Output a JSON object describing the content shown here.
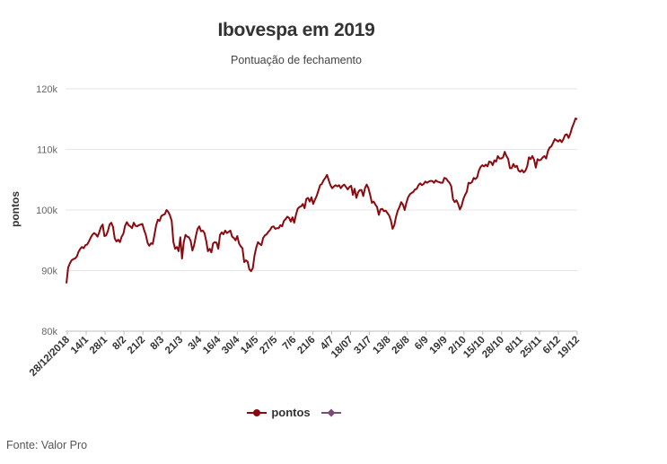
{
  "chart_data": {
    "type": "line",
    "title": "Ibovespa em 2019",
    "subtitle": "Pontuação de fechamento",
    "ylabel": "pontos",
    "xlabel": "",
    "ylim": [
      80000,
      120000
    ],
    "y_ticks": [
      80000,
      90000,
      100000,
      110000,
      120000
    ],
    "y_tick_labels": [
      "80k",
      "90k",
      "100k",
      "110k",
      "120k"
    ],
    "x_tick_labels": [
      "28/12/2018",
      "14/1",
      "28/1",
      "8/2",
      "21/2",
      "8/3",
      "21/3",
      "3/4",
      "16/4",
      "30/4",
      "14/5",
      "27/5",
      "7/6",
      "21/6",
      "4/7",
      "18/07",
      "31/7",
      "13/8",
      "26/8",
      "6/9",
      "19/9",
      "2/10",
      "15/10",
      "28/10",
      "8/11",
      "25/11",
      "6/12",
      "19/12"
    ],
    "grid": true,
    "legend_position": "bottom",
    "series": [
      {
        "name": "pontos",
        "color": "#8b0a0f",
        "values": [
          87900,
          90500,
          91200,
          91700,
          91900,
          92000,
          92300,
          93100,
          93600,
          93900,
          93700,
          94200,
          94300,
          94800,
          95400,
          95900,
          96200,
          96000,
          95600,
          96300,
          97200,
          97600,
          95700,
          95800,
          96500,
          97600,
          97900,
          97200,
          95300,
          94800,
          95100,
          94700,
          95600,
          96100,
          97400,
          98000,
          97500,
          97300,
          97000,
          97900,
          97400,
          97300,
          97500,
          97600,
          97700,
          96700,
          95900,
          94600,
          94100,
          94500,
          94400,
          95900,
          97500,
          98400,
          98200,
          99000,
          99200,
          99300,
          100000,
          99700,
          99100,
          98200,
          94700,
          93600,
          93900,
          93200,
          95500,
          92000,
          94700,
          95900,
          95600,
          95500,
          94900,
          93300,
          94200,
          95700,
          96900,
          97300,
          96500,
          96600,
          96200,
          94900,
          93200,
          93600,
          93000,
          94500,
          94700,
          94600,
          93600,
          95900,
          96300,
          96000,
          96600,
          96200,
          96400,
          96600,
          95600,
          95400,
          95000,
          95700,
          94500,
          94000,
          93700,
          91400,
          91700,
          91500,
          90200,
          89900,
          90400,
          92500,
          93800,
          94700,
          94400,
          94200,
          95400,
          95800,
          96000,
          96400,
          96700,
          97200,
          97300,
          96900,
          97000,
          97000,
          97500,
          97300,
          98200,
          98500,
          98900,
          98700,
          98100,
          98800,
          97900,
          99200,
          100200,
          100500,
          100600,
          101000,
          100300,
          101800,
          102000,
          101400,
          102100,
          101000,
          101700,
          102300,
          103200,
          104100,
          104300,
          104900,
          105300,
          105800,
          104900,
          104100,
          103600,
          103900,
          104100,
          103900,
          104100,
          103600,
          104000,
          104200,
          103800,
          103400,
          103800,
          104000,
          102500,
          103500,
          102000,
          102900,
          103300,
          103300,
          102300,
          103600,
          104200,
          103600,
          102500,
          101200,
          101400,
          100900,
          100500,
          99200,
          100100,
          100200,
          99800,
          99900,
          99500,
          99100,
          98300,
          96900,
          97500,
          98900,
          99900,
          100500,
          101300,
          100900,
          100000,
          101200,
          102100,
          102600,
          102800,
          103000,
          103400,
          103500,
          104100,
          104400,
          104100,
          104300,
          104700,
          104500,
          104700,
          104800,
          104800,
          104500,
          104900,
          104700,
          104600,
          104500,
          104500,
          105300,
          105200,
          104800,
          104500,
          103900,
          101800,
          101300,
          101600,
          101000,
          100100,
          100700,
          101800,
          102500,
          103000,
          104500,
          104400,
          104600,
          105300,
          105100,
          105400,
          106500,
          107100,
          107400,
          107200,
          107500,
          107200,
          108000,
          107900,
          107400,
          108200,
          108000,
          108900,
          108500,
          108500,
          108700,
          109600,
          108900,
          108400,
          106900,
          106900,
          107600,
          107100,
          107300,
          106500,
          106300,
          106600,
          106200,
          106500,
          107200,
          108700,
          108400,
          108900,
          108300,
          107000,
          108400,
          108200,
          108300,
          108700,
          108900,
          108500,
          109700,
          110300,
          110500,
          111100,
          111700,
          111500,
          111300,
          111600,
          111200,
          111700,
          112400,
          112500,
          111900,
          112600,
          113600,
          114300,
          115100,
          115000
        ]
      },
      {
        "name": "",
        "color": "#7d4a7a",
        "values": []
      }
    ]
  },
  "source": "Fonte: Valor Pro"
}
